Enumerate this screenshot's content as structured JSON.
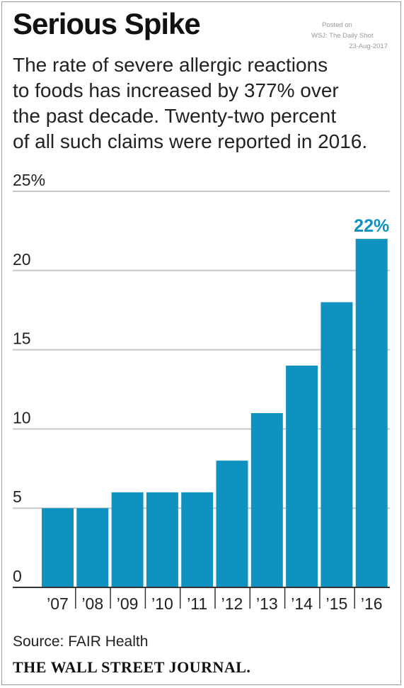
{
  "title": "Serious Spike",
  "subtitle": "The rate of severe allergic reactions\nto foods has increased by 377% over\nthe past decade. Twenty-two percent\nof all such claims were reported in 2016.",
  "posted": {
    "line1": "Posted on",
    "line2": "WSJ: The Daily Shot",
    "line3": "23-Aug-2017"
  },
  "source": "Source: FAIR Health",
  "publisher": "THE WALL STREET JOURNAL.",
  "colors": {
    "bar": "#0f92bf",
    "highlight_label": "#0f92bf",
    "grid": "#c8c8c8",
    "axis": "#333333"
  },
  "chart_data": {
    "type": "bar",
    "categories": [
      "’07",
      "’08",
      "’09",
      "’10",
      "’11",
      "’12",
      "’13",
      "’14",
      "’15",
      "’16"
    ],
    "values": [
      5,
      5,
      6,
      6,
      6,
      8,
      11,
      14,
      18,
      22
    ],
    "ylim": [
      0,
      25
    ],
    "yticks": [
      0,
      5,
      10,
      15,
      20,
      25
    ],
    "ytick_labels": [
      "0",
      "5",
      "10",
      "15",
      "20",
      "25%"
    ],
    "annotations": [
      {
        "category": "’16",
        "text": "22%"
      }
    ],
    "grid": true
  }
}
